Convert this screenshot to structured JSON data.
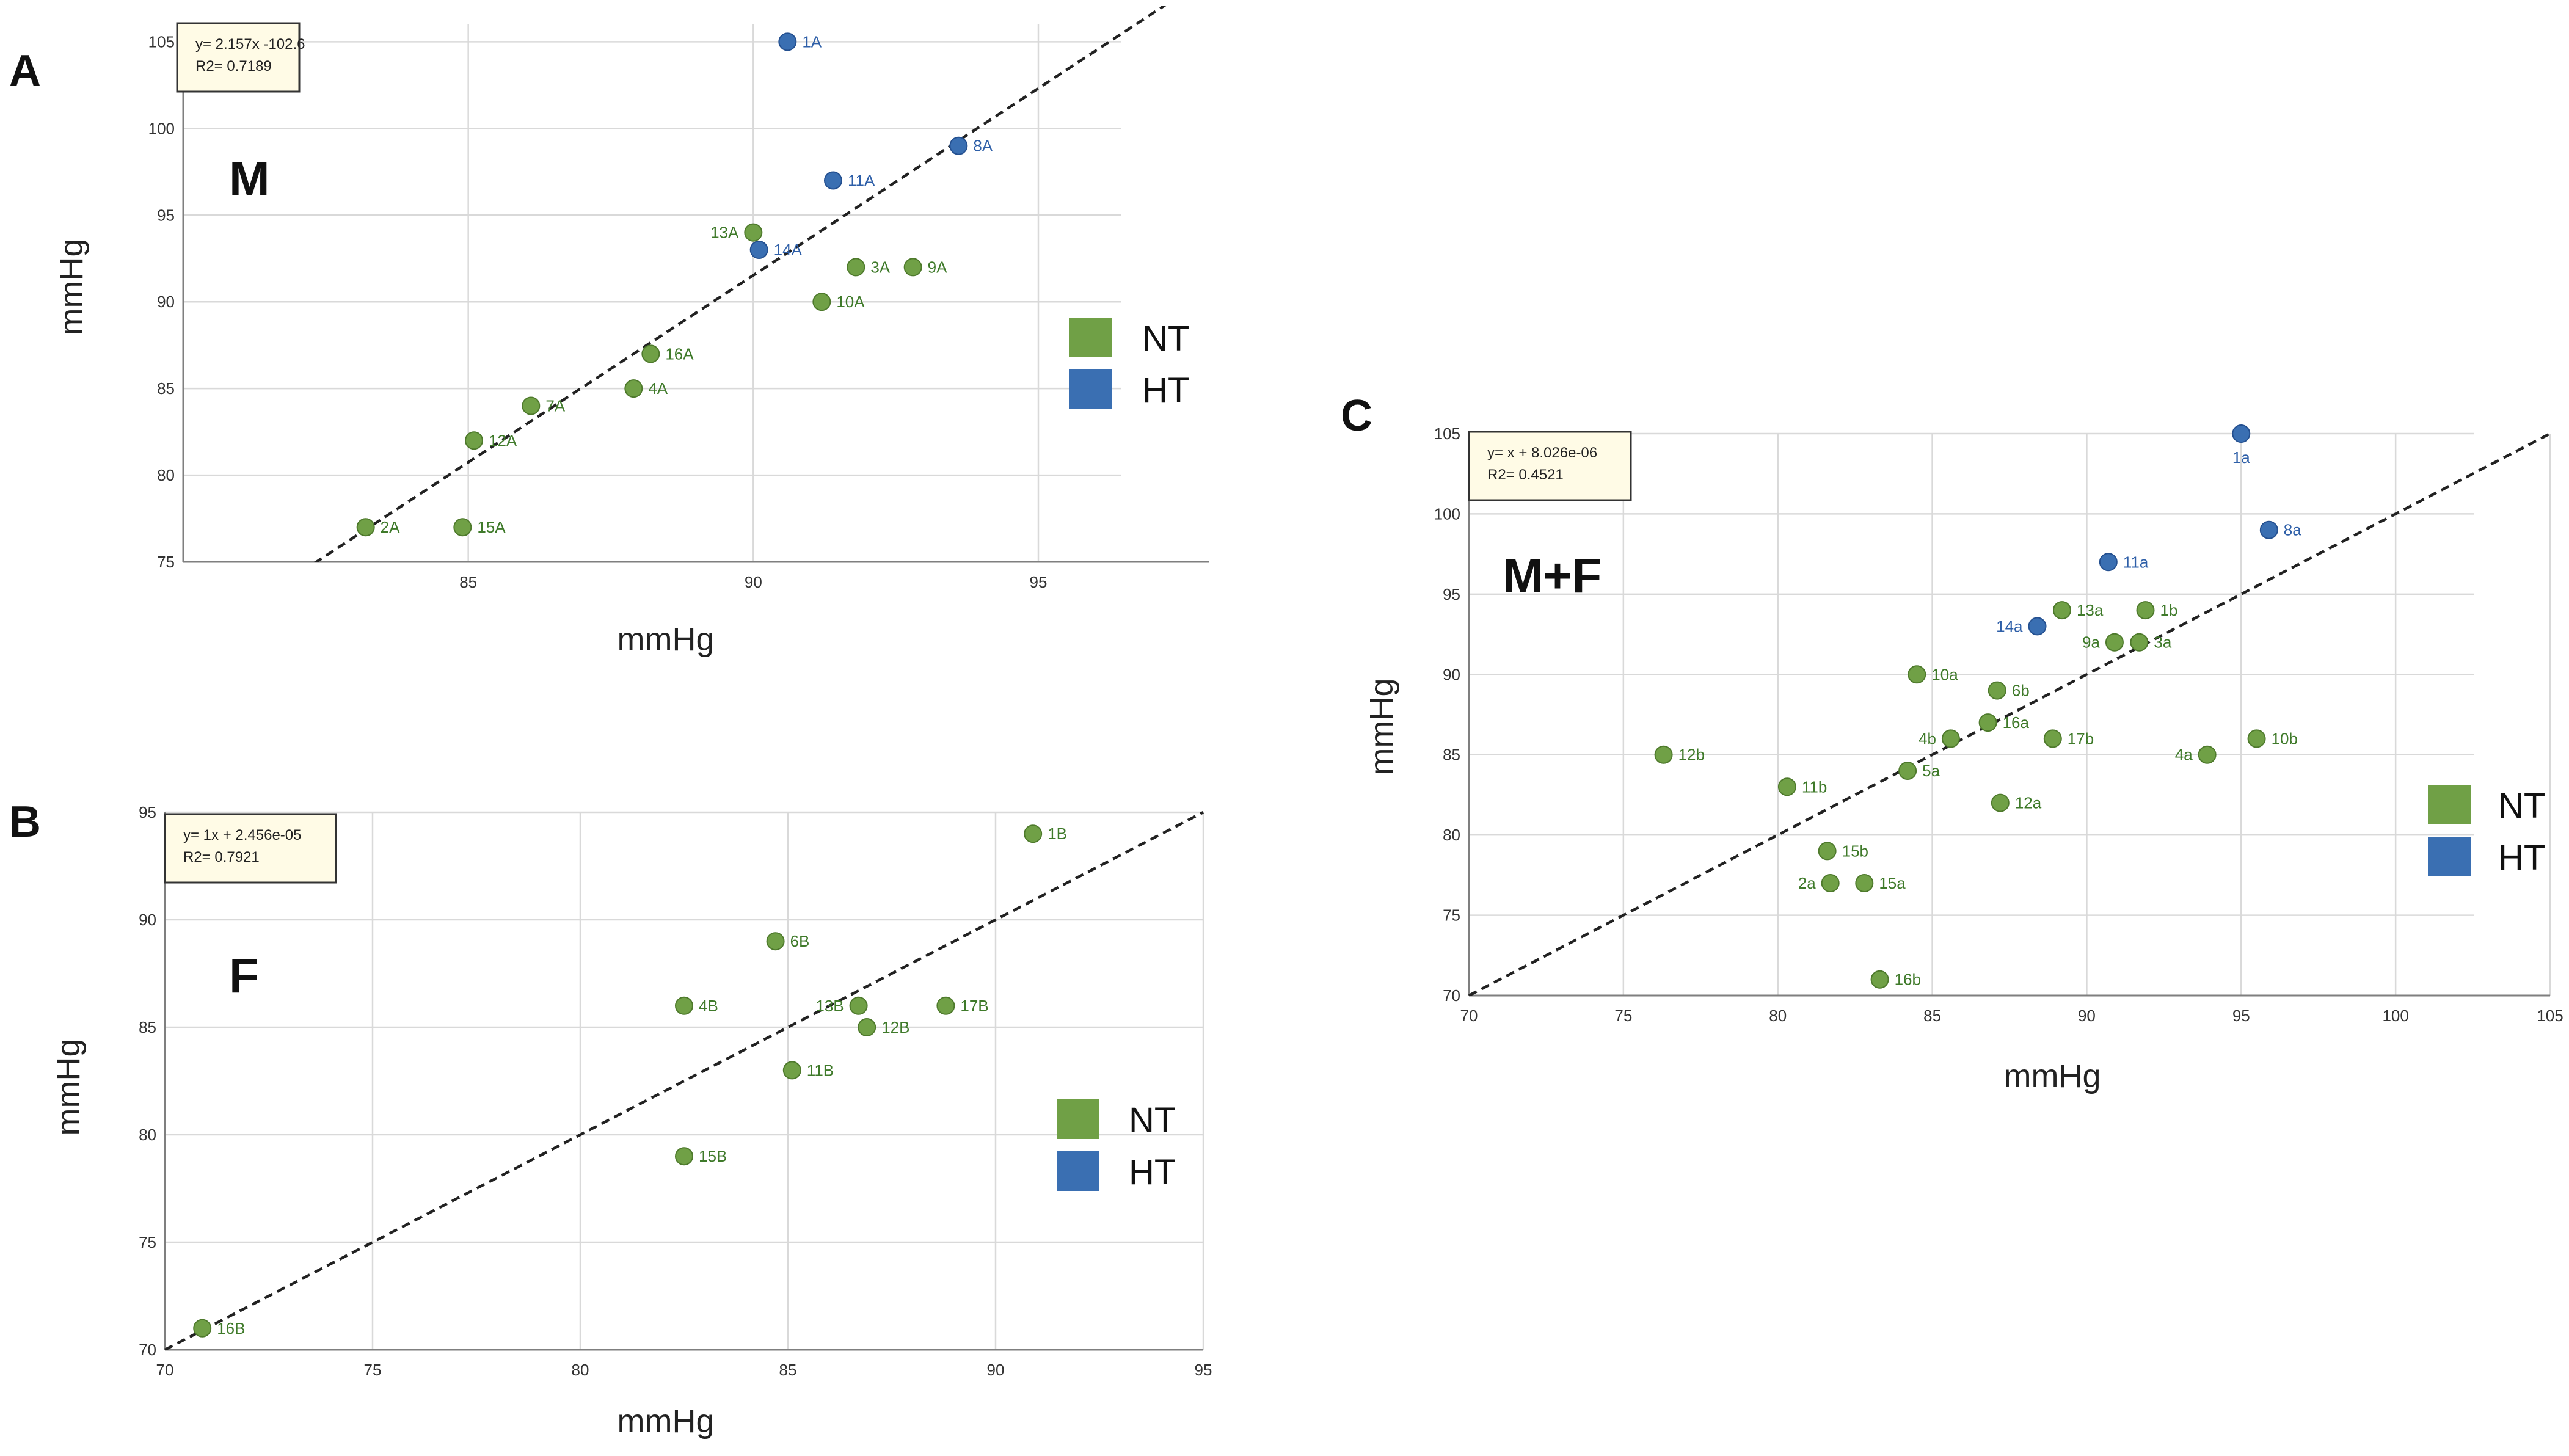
{
  "colors": {
    "NT": "#70a046",
    "HT": "#3a6fb2",
    "NT_stroke": "#4e7a2c",
    "HT_stroke": "#245090",
    "NT_text": "#3f7a2a",
    "HT_text": "#2e5fa8"
  },
  "chart_data": [
    {
      "id": "A",
      "type": "scatter",
      "panel_label": "A",
      "title": "M",
      "xlabel": "mmHg",
      "ylabel": "mmHg",
      "xlim": [
        80,
        98
      ],
      "ylim": [
        75,
        106
      ],
      "xticks": [
        85,
        90,
        95
      ],
      "yticks": [
        75,
        80,
        85,
        90,
        95,
        100,
        105
      ],
      "equation": "y= 2.157x -102.6",
      "r2": "R2= 0.7189",
      "trendline": {
        "slope": 2.157,
        "intercept": -102.6
      },
      "legend": [
        "NT",
        "HT"
      ],
      "points": [
        {
          "label": "1A",
          "x": 90.6,
          "y": 105,
          "group": "HT"
        },
        {
          "label": "8A",
          "x": 93.6,
          "y": 99,
          "group": "HT"
        },
        {
          "label": "11A",
          "x": 91.4,
          "y": 97,
          "group": "HT"
        },
        {
          "label": "14A",
          "x": 90.1,
          "y": 93,
          "group": "HT"
        },
        {
          "label": "13A",
          "x": 90.0,
          "y": 94,
          "group": "NT"
        },
        {
          "label": "3A",
          "x": 91.8,
          "y": 92,
          "group": "NT"
        },
        {
          "label": "9A",
          "x": 92.8,
          "y": 92,
          "group": "NT"
        },
        {
          "label": "10A",
          "x": 91.2,
          "y": 90,
          "group": "NT"
        },
        {
          "label": "16A",
          "x": 88.2,
          "y": 87,
          "group": "NT"
        },
        {
          "label": "4A",
          "x": 87.9,
          "y": 85,
          "group": "NT"
        },
        {
          "label": "7A",
          "x": 86.1,
          "y": 84,
          "group": "NT"
        },
        {
          "label": "12A",
          "x": 85.1,
          "y": 82,
          "group": "NT"
        },
        {
          "label": "2A",
          "x": 83.2,
          "y": 77,
          "group": "NT"
        },
        {
          "label": "15A",
          "x": 84.9,
          "y": 77,
          "group": "NT"
        }
      ]
    },
    {
      "id": "B",
      "type": "scatter",
      "panel_label": "B",
      "title": "F",
      "xlabel": "mmHg",
      "ylabel": "mmHg",
      "xlim": [
        70,
        95
      ],
      "ylim": [
        70,
        95
      ],
      "xticks": [
        70,
        75,
        80,
        85,
        90,
        95
      ],
      "yticks": [
        70,
        75,
        80,
        85,
        90,
        95
      ],
      "equation": "y= 1x + 2.456e-05",
      "r2": "R2= 0.7921",
      "trendline": {
        "slope": 1,
        "intercept": 2.456e-05
      },
      "legend": [
        "NT",
        "HT"
      ],
      "points": [
        {
          "label": "1B",
          "x": 90.9,
          "y": 94,
          "group": "NT"
        },
        {
          "label": "6B",
          "x": 84.7,
          "y": 89,
          "group": "NT"
        },
        {
          "label": "4B",
          "x": 82.5,
          "y": 86,
          "group": "NT"
        },
        {
          "label": "13B",
          "x": 86.7,
          "y": 86,
          "group": "NT"
        },
        {
          "label": "17B",
          "x": 88.8,
          "y": 86,
          "group": "NT"
        },
        {
          "label": "12B",
          "x": 86.9,
          "y": 85,
          "group": "NT"
        },
        {
          "label": "11B",
          "x": 85.1,
          "y": 83,
          "group": "NT"
        },
        {
          "label": "15B",
          "x": 82.5,
          "y": 79,
          "group": "NT"
        },
        {
          "label": "16B",
          "x": 70.9,
          "y": 71,
          "group": "NT"
        }
      ]
    },
    {
      "id": "C",
      "type": "scatter",
      "panel_label": "C",
      "title": "M+F",
      "xlabel": "mmHg",
      "ylabel": "mmHg",
      "xlim": [
        70,
        105
      ],
      "ylim": [
        70,
        105
      ],
      "xticks": [
        70,
        75,
        80,
        85,
        90,
        95,
        100,
        105
      ],
      "yticks": [
        70,
        75,
        80,
        85,
        90,
        95,
        100,
        105
      ],
      "equation": "y= x + 8.026e-06",
      "r2": "R2= 0.4521",
      "trendline": {
        "slope": 1,
        "intercept": 8.026e-06
      },
      "legend": [
        "NT",
        "HT"
      ],
      "points": [
        {
          "label": "1a",
          "x": 95.0,
          "y": 105,
          "group": "HT"
        },
        {
          "label": "8a",
          "x": 95.9,
          "y": 99,
          "group": "HT"
        },
        {
          "label": "11a",
          "x": 90.7,
          "y": 97,
          "group": "HT"
        },
        {
          "label": "14a",
          "x": 88.4,
          "y": 93,
          "group": "HT"
        },
        {
          "label": "13a",
          "x": 89.2,
          "y": 94,
          "group": "NT"
        },
        {
          "label": "1b",
          "x": 91.9,
          "y": 94,
          "group": "NT"
        },
        {
          "label": "9a",
          "x": 90.9,
          "y": 92,
          "group": "NT"
        },
        {
          "label": "3a",
          "x": 91.7,
          "y": 92,
          "group": "NT"
        },
        {
          "label": "10a",
          "x": 84.5,
          "y": 90,
          "group": "NT"
        },
        {
          "label": "6b",
          "x": 87.1,
          "y": 89,
          "group": "NT"
        },
        {
          "label": "16a",
          "x": 86.8,
          "y": 87,
          "group": "NT"
        },
        {
          "label": "4b",
          "x": 85.6,
          "y": 86,
          "group": "NT"
        },
        {
          "label": "17b",
          "x": 88.9,
          "y": 86,
          "group": "NT"
        },
        {
          "label": "10b",
          "x": 95.5,
          "y": 86,
          "group": "NT"
        },
        {
          "label": "4a",
          "x": 93.9,
          "y": 85,
          "group": "NT"
        },
        {
          "label": "12b",
          "x": 76.3,
          "y": 85,
          "group": "NT"
        },
        {
          "label": "5a",
          "x": 84.2,
          "y": 84,
          "group": "NT"
        },
        {
          "label": "11b",
          "x": 80.3,
          "y": 83,
          "group": "NT"
        },
        {
          "label": "12a",
          "x": 87.2,
          "y": 82,
          "group": "NT"
        },
        {
          "label": "15b",
          "x": 81.6,
          "y": 79,
          "group": "NT"
        },
        {
          "label": "2a",
          "x": 81.7,
          "y": 77,
          "group": "NT"
        },
        {
          "label": "15a",
          "x": 82.8,
          "y": 77,
          "group": "NT"
        },
        {
          "label": "16b",
          "x": 83.3,
          "y": 71,
          "group": "NT"
        }
      ]
    }
  ]
}
